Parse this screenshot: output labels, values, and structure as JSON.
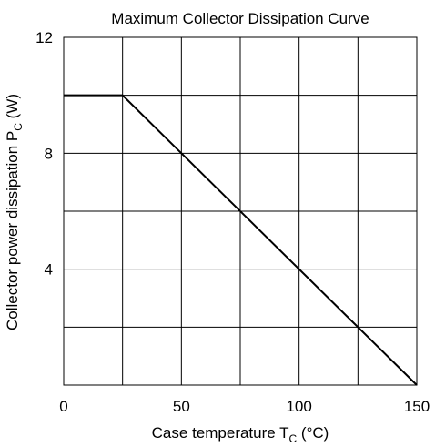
{
  "chart_data": {
    "type": "line",
    "title": "Maximum Collector Dissipation Curve",
    "xlabel": {
      "text": "Case temperature  T",
      "subscript": "C",
      "suffix": "  (°C)"
    },
    "ylabel": {
      "text": "Collector power dissipation  P",
      "subscript": "C",
      "suffix": "  (W)"
    },
    "xlim": [
      0,
      150
    ],
    "ylim": [
      0,
      12
    ],
    "xgrid": [
      0,
      25,
      50,
      75,
      100,
      125,
      150
    ],
    "ygrid": [
      0,
      2,
      4,
      6,
      8,
      10,
      12
    ],
    "xticks": [
      0,
      50,
      100,
      150
    ],
    "yticks": [
      4,
      8,
      12
    ],
    "grid": true,
    "series": [
      {
        "x": [
          0,
          25,
          150
        ],
        "y": [
          10,
          10,
          0
        ]
      }
    ]
  }
}
